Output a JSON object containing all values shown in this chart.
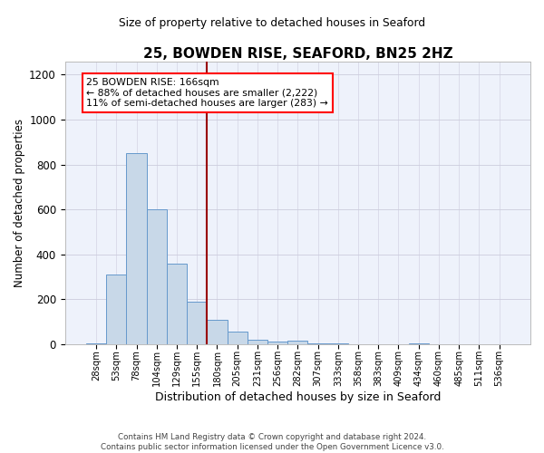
{
  "title": "25, BOWDEN RISE, SEAFORD, BN25 2HZ",
  "subtitle": "Size of property relative to detached houses in Seaford",
  "xlabel": "Distribution of detached houses by size in Seaford",
  "ylabel": "Number of detached properties",
  "categories": [
    "28sqm",
    "53sqm",
    "78sqm",
    "104sqm",
    "129sqm",
    "155sqm",
    "180sqm",
    "205sqm",
    "231sqm",
    "256sqm",
    "282sqm",
    "307sqm",
    "333sqm",
    "358sqm",
    "383sqm",
    "409sqm",
    "434sqm",
    "460sqm",
    "485sqm",
    "511sqm",
    "536sqm"
  ],
  "values": [
    5,
    310,
    850,
    600,
    360,
    190,
    110,
    55,
    20,
    10,
    15,
    5,
    5,
    0,
    0,
    0,
    5,
    0,
    0,
    0,
    0
  ],
  "bar_color": "#c8d8e8",
  "bar_edge_color": "#6699cc",
  "red_line_x": 5.5,
  "ylim": [
    0,
    1260
  ],
  "yticks": [
    0,
    200,
    400,
    600,
    800,
    1000,
    1200
  ],
  "annotation_title": "25 BOWDEN RISE: 166sqm",
  "annotation_line1": "← 88% of detached houses are smaller (2,222)",
  "annotation_line2": "11% of semi-detached houses are larger (283) →",
  "footer_line1": "Contains HM Land Registry data © Crown copyright and database right 2024.",
  "footer_line2": "Contains public sector information licensed under the Open Government Licence v3.0.",
  "background_color": "#eef2fb"
}
